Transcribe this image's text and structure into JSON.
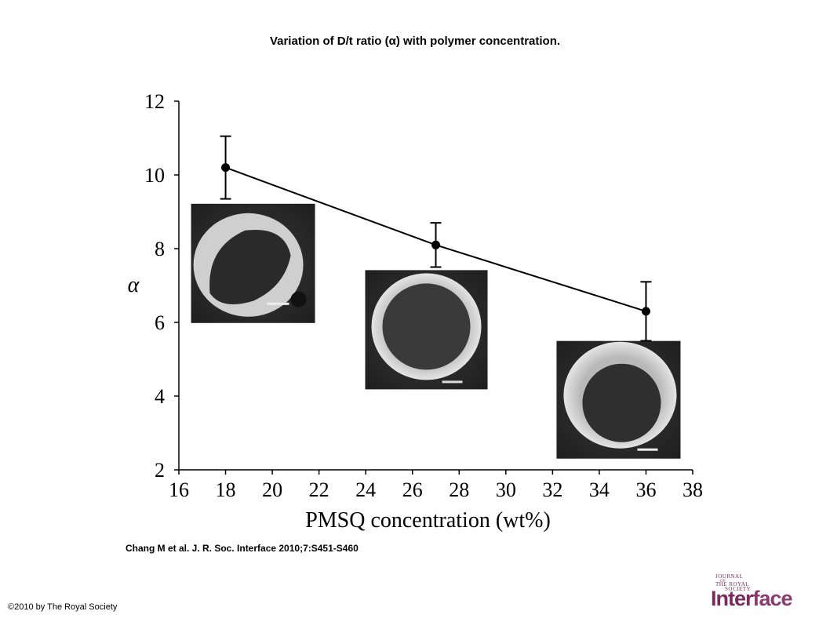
{
  "title": "Variation of D/t ratio (α) with polymer concentration.",
  "citation": "Chang M et al. J. R. Soc. Interface 2010;7:S451-S460",
  "copyright": "©2010 by The Royal Society",
  "logo": {
    "line1": "JOURNAL",
    "line2": "OF",
    "line3": "THE ROYAL",
    "line4": "SOCIETY",
    "word_a": "Inter",
    "word_b": "face",
    "color": "#7a2b5e"
  },
  "chart_data": {
    "type": "line",
    "xlabel": "PMSQ concentration (wt%)",
    "ylabel": "α",
    "xlim": [
      16,
      38
    ],
    "ylim": [
      2,
      12
    ],
    "xticks": [
      16,
      18,
      20,
      22,
      24,
      26,
      28,
      30,
      32,
      34,
      36,
      38
    ],
    "yticks": [
      2,
      4,
      6,
      8,
      10,
      12
    ],
    "grid": false,
    "series": [
      {
        "x": [
          18,
          27,
          36
        ],
        "y": [
          10.2,
          8.1,
          6.3
        ],
        "error": [
          0.85,
          0.6,
          0.8
        ]
      }
    ],
    "insets": [
      {
        "name": "sem-inset-18",
        "x": 18,
        "y": 7.6
      },
      {
        "name": "sem-inset-27",
        "x": 27,
        "y": 5.8
      },
      {
        "name": "sem-inset-36",
        "x": 36,
        "y": 3.9
      }
    ]
  }
}
